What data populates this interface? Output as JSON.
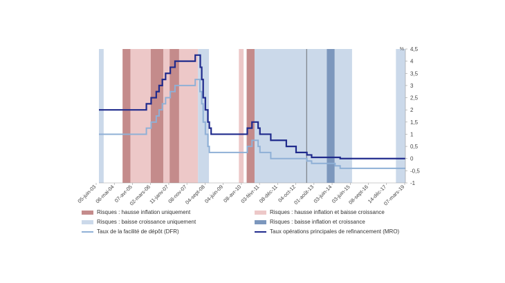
{
  "chart_data": {
    "type": "line",
    "title": "",
    "unit_label": "%",
    "xlabel": "",
    "ylabel": "",
    "ylim": [
      -1,
      4.5
    ],
    "yticks": [
      "4,5",
      "4",
      "3,5",
      "3",
      "2,5",
      "2",
      "1,5",
      "1",
      "0,5",
      "0",
      "-0,5",
      "-1"
    ],
    "x_tick_labels": [
      "05-juin-03",
      "06-mai-04",
      "07-avr-05",
      "02-mars-06",
      "11-janv-07",
      "08-nov-07",
      "04-sept-08",
      "04-juin-09",
      "08-avr-10",
      "03-févr-11",
      "08-déc-11",
      "04-oct-12",
      "01-août-13",
      "03-juin-14",
      "03-juin-15",
      "08-sept-16",
      "14-déc-17",
      "07-mars-19"
    ],
    "x_range": [
      "2003-06-01",
      "2019-08-31"
    ],
    "vertical_marker": "2014-06-05",
    "regimes": [
      {
        "key": "h",
        "label": "Risques : hausse inflation uniquement",
        "color": "#c48b8b"
      },
      {
        "key": "hb",
        "label": "Risques : hausse inflation et baisse croissance",
        "color": "#edc8c8"
      },
      {
        "key": "b",
        "label": "Risques : baisse croissance uniquement",
        "color": "#cbd9ea"
      },
      {
        "key": "bb",
        "label": "Risques : baisse inflation et croissance",
        "color": "#7c97bd"
      }
    ],
    "shaded_periods": [
      {
        "start": "2003-06-01",
        "end": "2003-09-01",
        "regime": "b"
      },
      {
        "start": "2004-09-01",
        "end": "2005-02-01",
        "regime": "h"
      },
      {
        "start": "2005-02-01",
        "end": "2006-03-01",
        "regime": "hb"
      },
      {
        "start": "2006-03-01",
        "end": "2006-11-01",
        "regime": "h"
      },
      {
        "start": "2006-11-01",
        "end": "2007-03-01",
        "regime": "hb"
      },
      {
        "start": "2007-03-01",
        "end": "2007-09-01",
        "regime": "h"
      },
      {
        "start": "2007-09-01",
        "end": "2008-09-01",
        "regime": "hb"
      },
      {
        "start": "2008-09-01",
        "end": "2009-04-01",
        "regime": "b"
      },
      {
        "start": "2010-11-01",
        "end": "2011-02-01",
        "regime": "hb"
      },
      {
        "start": "2011-04-01",
        "end": "2011-09-01",
        "regime": "h"
      },
      {
        "start": "2011-09-01",
        "end": "2015-07-01",
        "regime": "b"
      },
      {
        "start": "2015-07-01",
        "end": "2015-12-01",
        "regime": "bb"
      },
      {
        "start": "2015-12-01",
        "end": "2016-11-01",
        "regime": "b"
      },
      {
        "start": "2019-03-01",
        "end": "2019-08-31",
        "regime": "b"
      }
    ],
    "series": [
      {
        "name": "Taux de la facilité de dépôt (DFR)",
        "color": "#8fb0d6",
        "steps": [
          [
            "2003-06-01",
            1.0
          ],
          [
            "2005-12-06",
            1.25
          ],
          [
            "2006-03-08",
            1.5
          ],
          [
            "2006-06-15",
            1.75
          ],
          [
            "2006-08-09",
            2.0
          ],
          [
            "2006-10-11",
            2.25
          ],
          [
            "2006-12-13",
            2.5
          ],
          [
            "2007-03-14",
            2.75
          ],
          [
            "2007-06-13",
            3.0
          ],
          [
            "2008-07-09",
            3.25
          ],
          [
            "2008-10-08",
            2.75
          ],
          [
            "2008-11-12",
            2.25
          ],
          [
            "2008-12-10",
            1.5
          ],
          [
            "2009-01-21",
            1.0
          ],
          [
            "2009-03-11",
            0.5
          ],
          [
            "2009-04-08",
            0.25
          ],
          [
            "2011-04-13",
            0.5
          ],
          [
            "2011-07-13",
            0.75
          ],
          [
            "2011-11-09",
            0.5
          ],
          [
            "2011-12-14",
            0.25
          ],
          [
            "2012-07-11",
            0.0
          ],
          [
            "2014-06-11",
            -0.1
          ],
          [
            "2014-09-10",
            -0.2
          ],
          [
            "2015-12-09",
            -0.3
          ],
          [
            "2016-03-16",
            -0.4
          ],
          [
            "2019-08-31",
            -0.4
          ]
        ]
      },
      {
        "name": "Taux opérations principales de refinancement (MRO)",
        "color": "#1f2a8c",
        "steps": [
          [
            "2003-06-01",
            2.0
          ],
          [
            "2005-12-06",
            2.25
          ],
          [
            "2006-03-08",
            2.5
          ],
          [
            "2006-06-15",
            2.75
          ],
          [
            "2006-08-09",
            3.0
          ],
          [
            "2006-10-11",
            3.25
          ],
          [
            "2006-12-13",
            3.5
          ],
          [
            "2007-03-14",
            3.75
          ],
          [
            "2007-06-13",
            4.0
          ],
          [
            "2008-07-09",
            4.25
          ],
          [
            "2008-10-15",
            3.75
          ],
          [
            "2008-11-12",
            3.25
          ],
          [
            "2008-12-10",
            2.5
          ],
          [
            "2009-01-21",
            2.0
          ],
          [
            "2009-03-11",
            1.5
          ],
          [
            "2009-04-08",
            1.25
          ],
          [
            "2009-05-13",
            1.0
          ],
          [
            "2011-04-13",
            1.25
          ],
          [
            "2011-07-13",
            1.5
          ],
          [
            "2011-11-09",
            1.25
          ],
          [
            "2011-12-14",
            1.0
          ],
          [
            "2012-07-11",
            0.75
          ],
          [
            "2013-05-08",
            0.5
          ],
          [
            "2013-11-13",
            0.25
          ],
          [
            "2014-06-11",
            0.15
          ],
          [
            "2014-09-10",
            0.05
          ],
          [
            "2016-03-16",
            0.0
          ],
          [
            "2019-08-31",
            0.0
          ]
        ]
      }
    ],
    "legend": [
      {
        "kind": "swatch",
        "regime": "h",
        "label": "Risques : hausse inflation uniquement"
      },
      {
        "kind": "swatch",
        "regime": "hb",
        "label": "Risques : hausse inflation et baisse croissance"
      },
      {
        "kind": "swatch",
        "regime": "b",
        "label": "Risques : baisse croissance uniquement"
      },
      {
        "kind": "swatch",
        "regime": "bb",
        "label": "Risques : baisse inflation et croissance"
      },
      {
        "kind": "line",
        "color": "#8fb0d6",
        "label": "Taux de la facilité de dépôt (DFR)"
      },
      {
        "kind": "line",
        "color": "#1f2a8c",
        "label": "Taux opérations principales de refinancement (MRO)"
      }
    ],
    "legend_placement": "bottom",
    "grid": false
  }
}
